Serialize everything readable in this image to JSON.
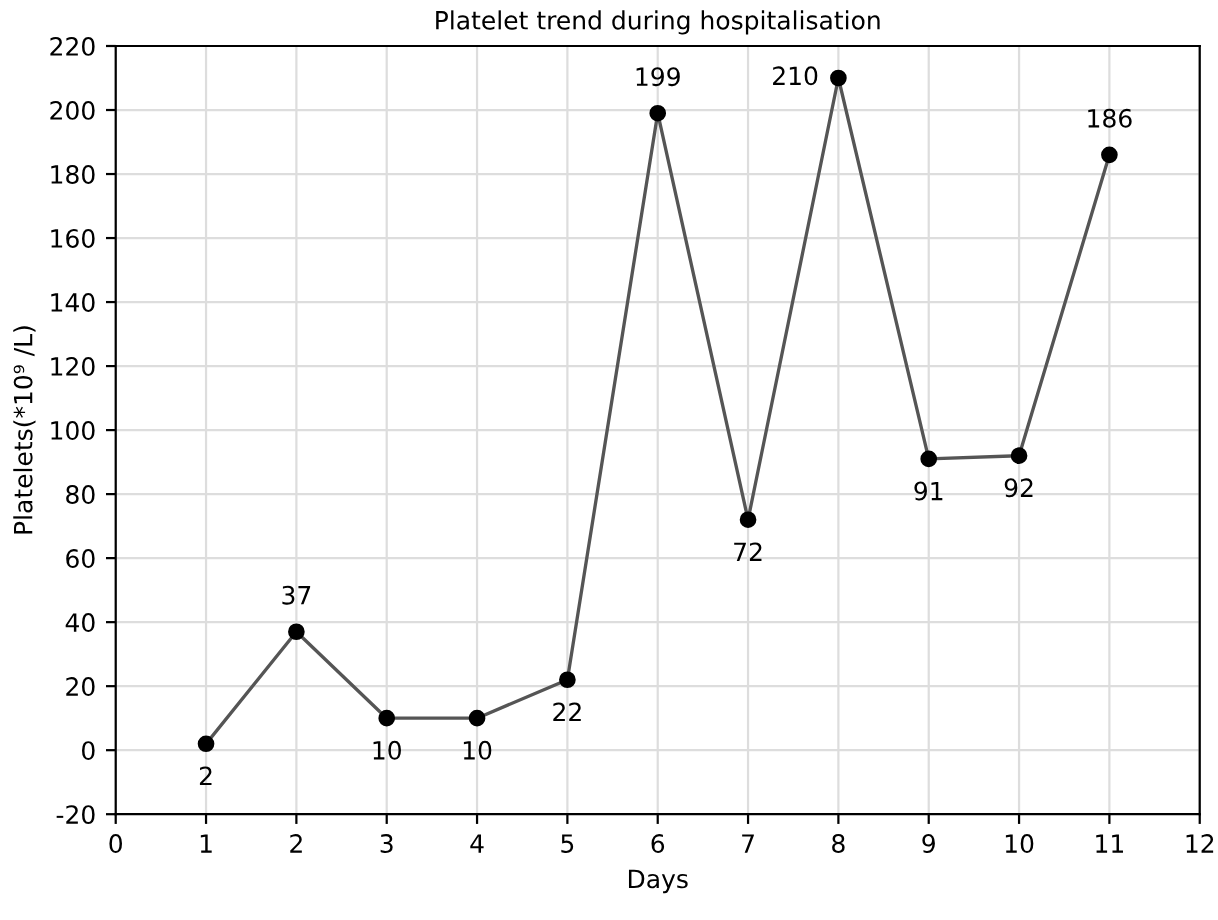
{
  "chart_data": {
    "type": "line",
    "title": "Platelet trend during hospitalisation",
    "xlabel": "Days",
    "ylabel": "Platelets(*10⁹ /L)",
    "x": [
      1,
      2,
      3,
      4,
      5,
      6,
      7,
      8,
      9,
      10,
      11
    ],
    "series": [
      {
        "color": "#555555",
        "values": [
          2,
          37,
          10,
          10,
          22,
          199,
          72,
          210,
          91,
          92,
          186
        ]
      }
    ],
    "xlim": [
      0,
      12
    ],
    "xticks": [
      0,
      1,
      2,
      3,
      4,
      5,
      6,
      7,
      8,
      9,
      10,
      11,
      12
    ],
    "ylim": [
      -20,
      220
    ],
    "yticks": [
      -20,
      0,
      20,
      40,
      60,
      80,
      100,
      120,
      140,
      160,
      180,
      200,
      220
    ],
    "grid": true,
    "marker": "circle",
    "line_style": "solid",
    "data_labels": true
  }
}
